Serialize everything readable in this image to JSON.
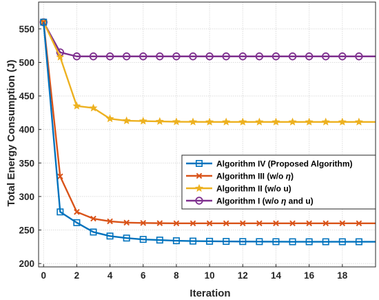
{
  "chart_data": {
    "type": "line",
    "title": "",
    "xlabel": "Iteration",
    "ylabel": "Total Energy Consumption (J)",
    "xlim": [
      -0.3,
      20
    ],
    "ylim": [
      195,
      590
    ],
    "xticks": [
      0,
      2,
      4,
      6,
      8,
      10,
      12,
      14,
      16,
      18
    ],
    "yticks": [
      200,
      250,
      300,
      350,
      400,
      450,
      500,
      550
    ],
    "grid": true,
    "legend_position": "center-right",
    "x": [
      0,
      1,
      2,
      3,
      4,
      5,
      6,
      7,
      8,
      9,
      10,
      11,
      12,
      13,
      14,
      15,
      16,
      17,
      18,
      19
    ],
    "series": [
      {
        "name": "Algorithm IV (Proposed Algorithm)",
        "legend_parts": [
          "Algorithm IV (Proposed Algorithm)"
        ],
        "color": "#0072bd",
        "marker": "square",
        "values": [
          560,
          277,
          261,
          247,
          241,
          238,
          236,
          235,
          234,
          233.5,
          233.2,
          233,
          232.8,
          232.7,
          232.6,
          232.5,
          232.5,
          232.5,
          232.5,
          232.5
        ]
      },
      {
        "name": "Algorithm III (w/o η)",
        "legend_parts": [
          "Algorithm III (w/o ",
          "η",
          ")"
        ],
        "color": "#d95319",
        "marker": "x",
        "values": [
          560,
          330,
          277,
          267,
          263,
          261,
          260.5,
          260.2,
          260,
          260,
          260,
          260,
          260,
          260,
          260,
          260,
          260,
          260,
          260,
          260
        ]
      },
      {
        "name": "Algorithm II (w/o u)",
        "legend_parts": [
          "Algorithm II (w/o u)"
        ],
        "color": "#edb120",
        "marker": "star",
        "values": [
          560,
          508,
          435,
          432,
          416,
          413,
          412.5,
          412,
          411.5,
          411.3,
          411.2,
          411.2,
          411.2,
          411.2,
          411.2,
          411.2,
          411.2,
          411.2,
          411.2,
          411.2
        ]
      },
      {
        "name": "Algorithm I (w/o η and u)",
        "legend_parts": [
          "Algorithm I (w/o ",
          "η",
          " and u)"
        ],
        "color": "#7e2f8e",
        "marker": "circle",
        "values": [
          560,
          515,
          509,
          509,
          509,
          509,
          509,
          509,
          509,
          509,
          509,
          509,
          509,
          509,
          509,
          509,
          509,
          509,
          509,
          509
        ]
      }
    ]
  }
}
